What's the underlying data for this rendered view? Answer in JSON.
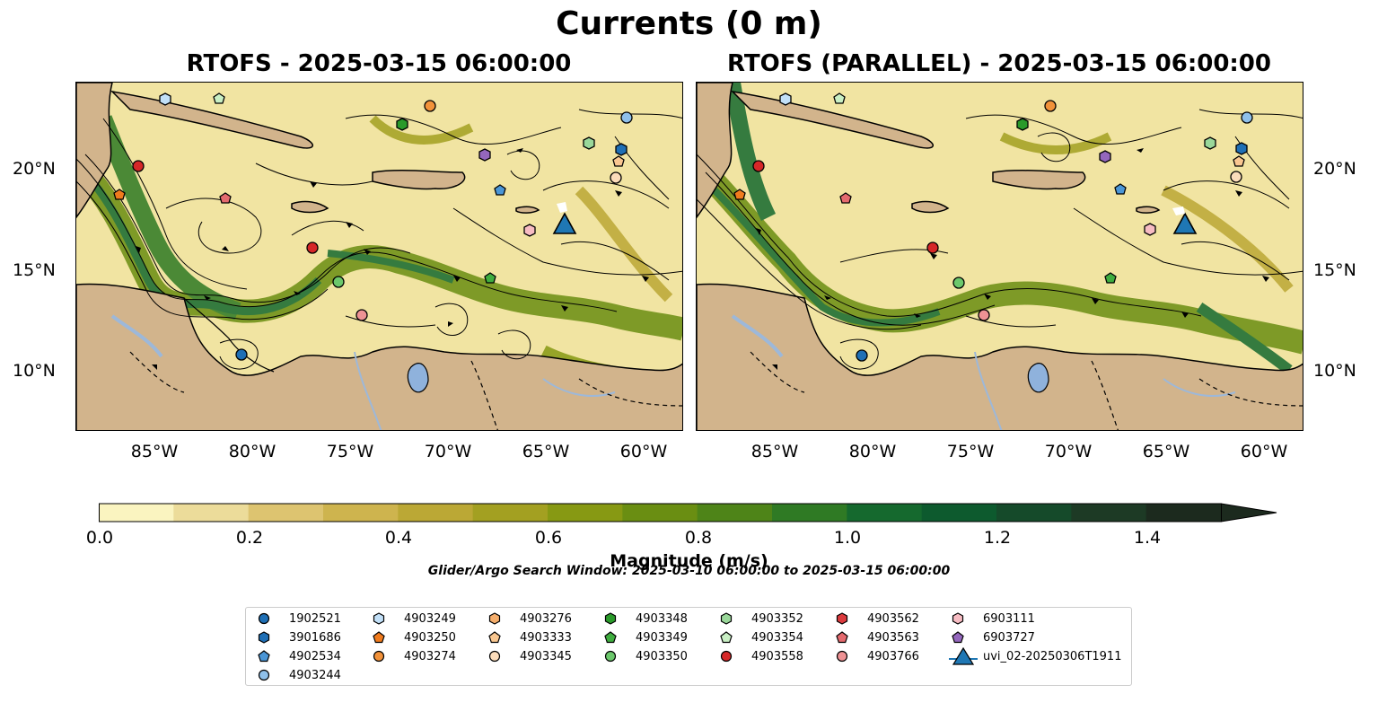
{
  "figure": {
    "title": "Currents (0 m)",
    "panels": [
      {
        "title": "RTOFS - 2025-03-15 06:00:00"
      },
      {
        "title": "RTOFS (PARALLEL) - 2025-03-15 06:00:00"
      }
    ]
  },
  "axes": {
    "lat_labels": [
      "20°N",
      "15°N",
      "10°N"
    ],
    "lon_labels": [
      "85°W",
      "80°W",
      "75°W",
      "70°W",
      "65°W",
      "60°W"
    ]
  },
  "colorbar": {
    "label": "Magnitude (m/s)",
    "range": [
      0.0,
      1.5
    ],
    "extend": "max",
    "ticks": [
      "0.0",
      "0.2",
      "0.4",
      "0.6",
      "0.8",
      "1.0",
      "1.2",
      "1.4"
    ],
    "colors": [
      "#faf4c0",
      "#ecdc9a",
      "#ddc470",
      "#ceb44e",
      "#bba835",
      "#a3a021",
      "#879913",
      "#6a8e12",
      "#4e8418",
      "#2f7a24",
      "#15692e",
      "#0d5a2e",
      "#154a2a",
      "#1d3a25",
      "#1c2a1e"
    ]
  },
  "search_window": "Glider/Argo Search Window: 2025-03-10 06:00:00 to 2025-03-15 06:00:00",
  "legend": [
    {
      "label": "1902521",
      "marker": "circle",
      "color": "#1f6fb5"
    },
    {
      "label": "3901686",
      "marker": "hexagon",
      "color": "#1f6fb5"
    },
    {
      "label": "4902534",
      "marker": "pentagon",
      "color": "#4b96d6"
    },
    {
      "label": "4903244",
      "marker": "circle",
      "color": "#8fc0ea"
    },
    {
      "label": "4903249",
      "marker": "hexagon",
      "color": "#c2e0f8"
    },
    {
      "label": "4903250",
      "marker": "pentagon",
      "color": "#f07b1d"
    },
    {
      "label": "4903274",
      "marker": "circle",
      "color": "#f2923a"
    },
    {
      "label": "4903276",
      "marker": "hexagon",
      "color": "#f5ae6c"
    },
    {
      "label": "4903333",
      "marker": "pentagon",
      "color": "#f9c791"
    },
    {
      "label": "4903345",
      "marker": "circle",
      "color": "#fbdcbb"
    },
    {
      "label": "4903348",
      "marker": "hexagon",
      "color": "#2a9a2a"
    },
    {
      "label": "4903349",
      "marker": "pentagon",
      "color": "#3fad3f"
    },
    {
      "label": "4903350",
      "marker": "circle",
      "color": "#6cc86c"
    },
    {
      "label": "4903352",
      "marker": "hexagon",
      "color": "#9ad89a"
    },
    {
      "label": "4903354",
      "marker": "pentagon",
      "color": "#c9efc4"
    },
    {
      "label": "4903558",
      "marker": "circle",
      "color": "#d62728"
    },
    {
      "label": "4903562",
      "marker": "hexagon",
      "color": "#db3b3e"
    },
    {
      "label": "4903563",
      "marker": "pentagon",
      "color": "#e46a6e"
    },
    {
      "label": "4903766",
      "marker": "circle",
      "color": "#ee9294"
    },
    {
      "label": "6903111",
      "marker": "hexagon",
      "color": "#f7bcc3"
    },
    {
      "label": "6903727",
      "marker": "pentagon",
      "color": "#9467bd"
    },
    {
      "label": "uvi_02-20250306T1911",
      "marker": "triangle",
      "color": "#1f77b4"
    }
  ],
  "colors": {
    "land": "#d2b48c",
    "lake": "#8fb2dc",
    "river": "#9db8d9"
  }
}
